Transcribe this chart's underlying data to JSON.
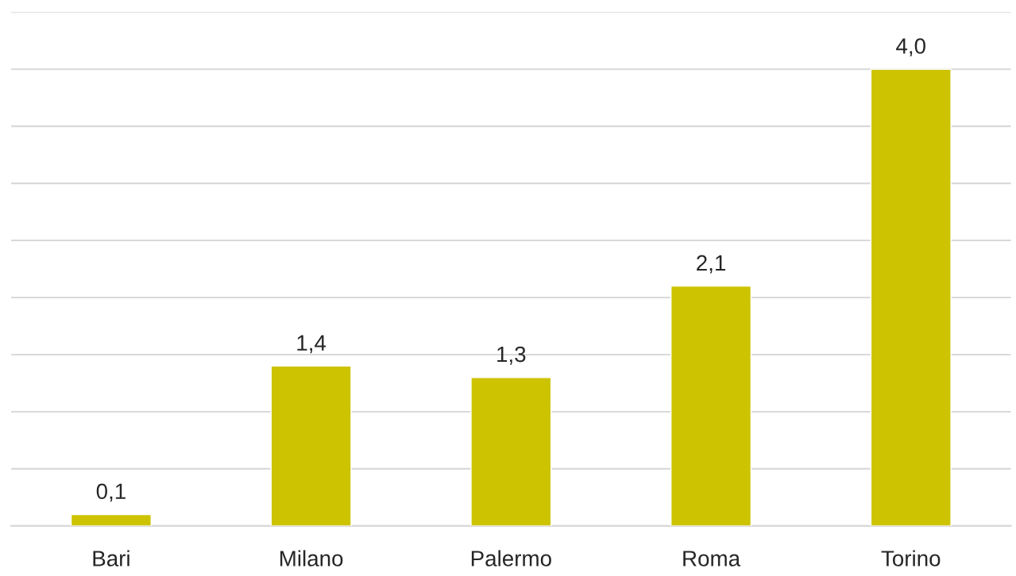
{
  "chart_data": {
    "type": "bar",
    "categories": [
      "Bari",
      "Milano",
      "Palermo",
      "Roma",
      "Torino"
    ],
    "values": [
      0.1,
      1.4,
      1.3,
      2.1,
      4.0
    ],
    "color": "#cdc300",
    "data_labels": true,
    "value_labels": [
      "0,1",
      "1,4",
      "1,3",
      "2,1",
      "4,0"
    ],
    "ylim": [
      0,
      4.5
    ],
    "yticks": [
      {
        "value": 0,
        "label": null
      },
      {
        "value": 0.5,
        "label": null
      },
      {
        "value": 1,
        "label": null
      },
      {
        "value": 1.5,
        "label": null
      },
      {
        "value": 2,
        "label": null
      },
      {
        "value": 2.5,
        "label": null
      },
      {
        "value": 3,
        "label": null
      },
      {
        "value": 3.5,
        "label": null
      },
      {
        "value": 4,
        "label": null
      },
      {
        "value": 4.5,
        "label": null
      }
    ],
    "grid": "y",
    "tick_labels": "x"
  }
}
